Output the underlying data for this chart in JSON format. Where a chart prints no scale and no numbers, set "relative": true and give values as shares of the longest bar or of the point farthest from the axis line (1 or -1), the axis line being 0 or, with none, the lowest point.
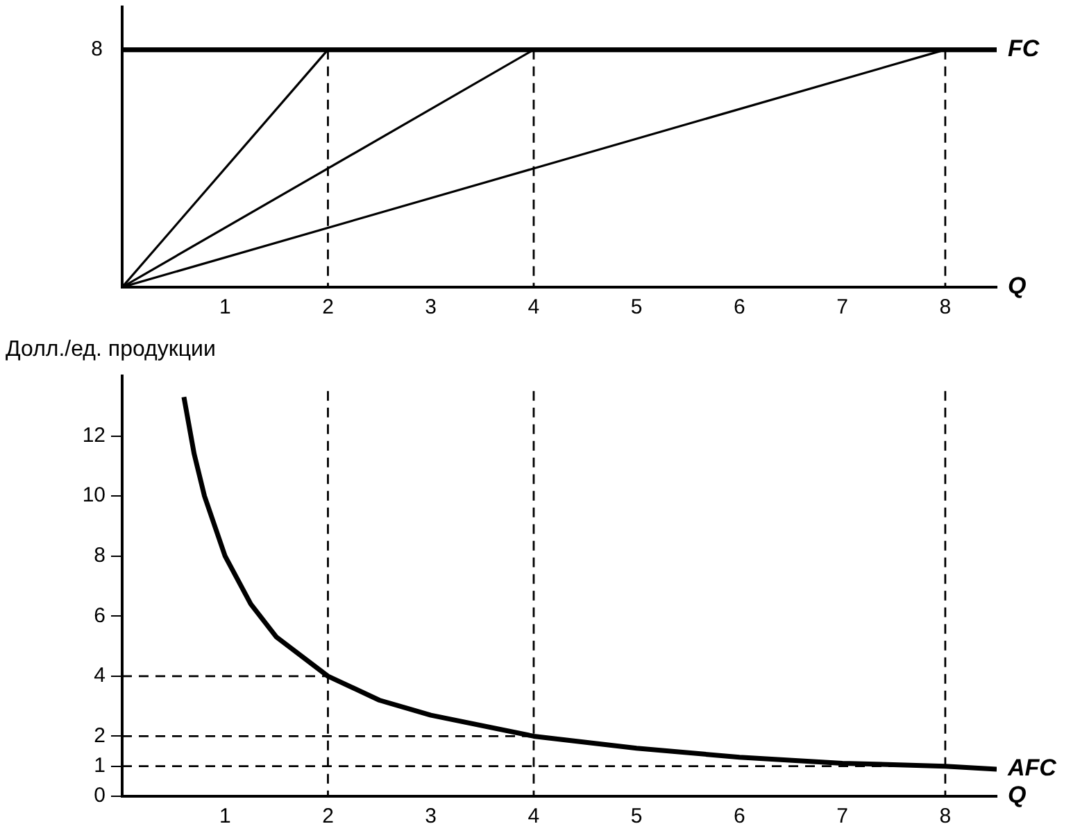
{
  "chart_data": [
    {
      "type": "line",
      "relative": true,
      "xlabel": "Q",
      "xlim": [
        0,
        8.5
      ],
      "xticks": [
        1,
        2,
        3,
        4,
        5,
        6,
        7,
        8
      ],
      "annotations": [
        "8"
      ],
      "grid": false,
      "legend": false,
      "marker": "none",
      "series": [
        {
          "name": "FC",
          "color": "#000000",
          "x": [
            0,
            8.5
          ],
          "values": [
            1,
            1
          ]
        },
        {
          "color": "#000000",
          "x": [
            0,
            2
          ],
          "values": [
            0,
            1
          ]
        },
        {
          "color": "#000000",
          "x": [
            0,
            4
          ],
          "values": [
            0,
            1
          ]
        },
        {
          "color": "#000000",
          "x": [
            0,
            8
          ],
          "values": [
            0,
            1
          ]
        },
        {
          "color": "#000000",
          "line_style": "dashed",
          "x": [
            2,
            2
          ],
          "values": [
            1,
            0
          ]
        },
        {
          "color": "#000000",
          "line_style": "dashed",
          "x": [
            4,
            4
          ],
          "values": [
            1,
            0
          ]
        },
        {
          "color": "#000000",
          "line_style": "dashed",
          "x": [
            8,
            8
          ],
          "values": [
            1,
            0
          ]
        }
      ]
    },
    {
      "type": "line",
      "xlabel": "Q",
      "ylabel": "Долл./ед. продукции",
      "xlim": [
        0,
        8.5
      ],
      "ylim": [
        0,
        14
      ],
      "xticks": [
        1,
        2,
        3,
        4,
        5,
        6,
        7,
        8
      ],
      "yticks": [
        0,
        1,
        2,
        4,
        6,
        8,
        10,
        12
      ],
      "legend": false,
      "marker": "none",
      "series": [
        {
          "name": "AFC",
          "color": "#000000",
          "x": [
            0.6,
            0.7,
            0.8,
            1,
            1.25,
            1.5,
            2,
            2.5,
            3,
            4,
            5,
            6,
            7,
            8,
            8.5
          ],
          "values": [
            13.3,
            11.4,
            10,
            8,
            6.4,
            5.3,
            4,
            3.2,
            2.7,
            2,
            1.6,
            1.3,
            1.1,
            1,
            0.9
          ]
        },
        {
          "color": "#000000",
          "line_style": "dashed",
          "x": [
            0,
            2
          ],
          "values": [
            4,
            4
          ]
        },
        {
          "color": "#000000",
          "line_style": "dashed",
          "x": [
            0,
            4
          ],
          "values": [
            2,
            2
          ]
        },
        {
          "color": "#000000",
          "line_style": "dashed",
          "x": [
            0,
            8
          ],
          "values": [
            1,
            1
          ]
        },
        {
          "color": "#000000",
          "line_style": "dashed",
          "x": [
            2,
            2
          ],
          "values": [
            13.5,
            0
          ]
        },
        {
          "color": "#000000",
          "line_style": "dashed",
          "x": [
            4,
            4
          ],
          "values": [
            13.5,
            0
          ]
        },
        {
          "color": "#000000",
          "line_style": "dashed",
          "x": [
            8,
            8
          ],
          "values": [
            13.5,
            0
          ]
        }
      ]
    }
  ]
}
